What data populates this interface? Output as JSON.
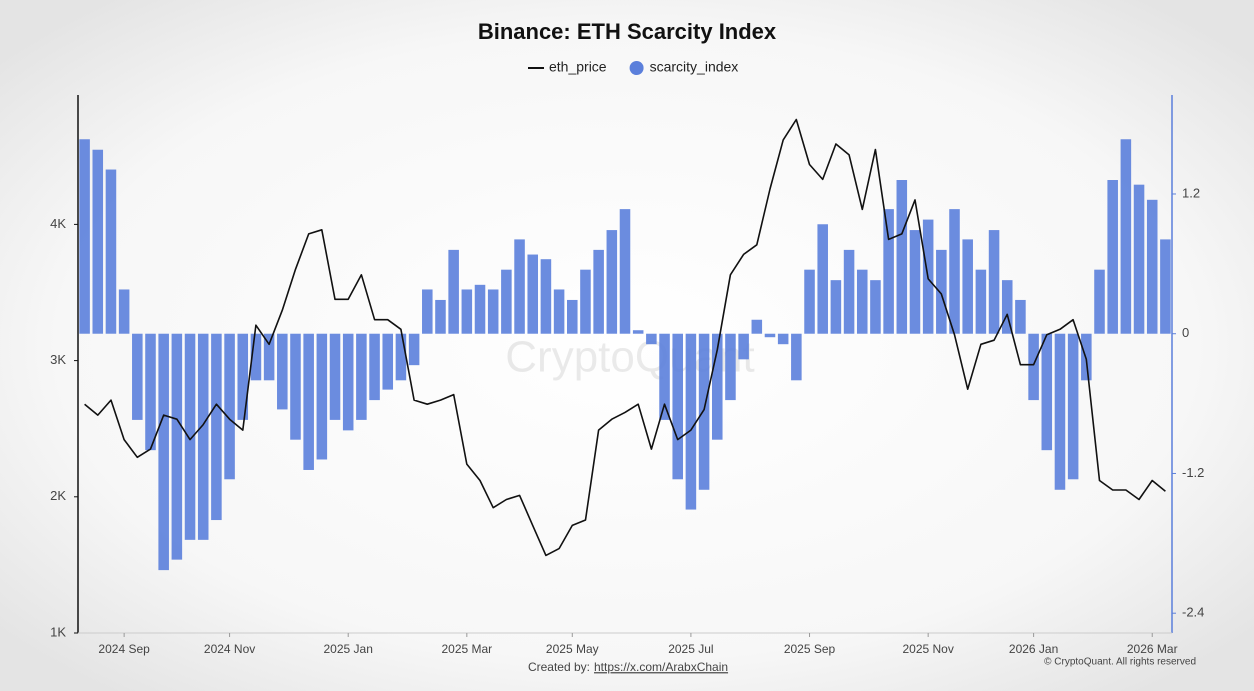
{
  "chart_data": {
    "type": "bar-line",
    "title": "Binance: ETH Scarcity Index",
    "watermark": "CryptoQuant",
    "credit_label": "Created by:",
    "credit_link": "https://x.com/ArabxChain",
    "copyright": "© CryptoQuant. All rights reserved",
    "categories": [
      null,
      null,
      null,
      "2024 Sep",
      null,
      null,
      null,
      null,
      null,
      null,
      null,
      "2024 Nov",
      null,
      null,
      null,
      null,
      null,
      null,
      null,
      null,
      "2025 Jan",
      null,
      null,
      null,
      null,
      null,
      null,
      null,
      null,
      "2025 Mar",
      null,
      null,
      null,
      null,
      null,
      null,
      null,
      "2025 May",
      null,
      null,
      null,
      null,
      null,
      null,
      null,
      null,
      "2025 Jul",
      null,
      null,
      null,
      null,
      null,
      null,
      null,
      null,
      "2025 Sep",
      null,
      null,
      null,
      null,
      null,
      null,
      null,
      null,
      "2025 Nov",
      null,
      null,
      null,
      null,
      null,
      null,
      null,
      "2026 Jan",
      null,
      null,
      null,
      null,
      null,
      null,
      null,
      null,
      "2026 Mar",
      null
    ],
    "series": [
      {
        "name": "eth_price",
        "kind": "line",
        "axis": "y",
        "color": "#111111",
        "values": [
          2680,
          2600,
          2710,
          2420,
          2290,
          2350,
          2600,
          2570,
          2420,
          2530,
          2680,
          2570,
          2490,
          3260,
          3120,
          3370,
          3670,
          3930,
          3960,
          3450,
          3450,
          3630,
          3300,
          3300,
          3230,
          2710,
          2680,
          2710,
          2750,
          2240,
          2120,
          1920,
          1980,
          2010,
          1790,
          1570,
          1620,
          1790,
          1830,
          2490,
          2570,
          2620,
          2680,
          2350,
          2680,
          2420,
          2490,
          2640,
          3080,
          3630,
          3780,
          3850,
          4260,
          4620,
          4770,
          4440,
          4330,
          4590,
          4510,
          4110,
          4550,
          3890,
          3930,
          4180,
          3600,
          3490,
          3190,
          2790,
          3120,
          3150,
          3340,
          2970,
          2970,
          3190,
          3230,
          3300,
          3010,
          2120,
          2050,
          2050,
          1980,
          2120,
          2040
        ]
      },
      {
        "name": "scarcity_index",
        "kind": "bar",
        "axis": "y2",
        "color": "#5b7fdb",
        "values": [
          1.67,
          1.58,
          1.41,
          0.38,
          -0.74,
          -1.0,
          -2.03,
          -1.94,
          -1.77,
          -1.77,
          -1.6,
          -1.25,
          -0.74,
          -0.4,
          -0.4,
          -0.65,
          -0.91,
          -1.17,
          -1.08,
          -0.74,
          -0.83,
          -0.74,
          -0.57,
          -0.48,
          -0.4,
          -0.27,
          0.38,
          0.29,
          0.72,
          0.38,
          0.42,
          0.38,
          0.55,
          0.81,
          0.68,
          0.64,
          0.38,
          0.29,
          0.55,
          0.72,
          0.89,
          1.07,
          0.03,
          -0.09,
          -0.74,
          -1.25,
          -1.51,
          -1.34,
          -0.91,
          -0.57,
          -0.22,
          0.12,
          -0.03,
          -0.09,
          -0.4,
          0.55,
          0.94,
          0.46,
          0.72,
          0.55,
          0.46,
          1.07,
          1.32,
          0.89,
          0.98,
          0.72,
          1.07,
          0.81,
          0.55,
          0.89,
          0.46,
          0.29,
          -0.57,
          -1.0,
          -1.34,
          -1.25,
          -0.4,
          0.55,
          1.32,
          1.67,
          1.28,
          1.15,
          0.81
        ]
      }
    ],
    "ylim": [
      1000,
      4950
    ],
    "yticks": [
      {
        "value": 1000,
        "label": "1K"
      },
      {
        "value": 2000,
        "label": "2K"
      },
      {
        "value": 3000,
        "label": "3K"
      },
      {
        "value": 4000,
        "label": "4K"
      }
    ],
    "y2lim": [
      -2.57,
      2.05
    ],
    "y2ticks": [
      -2.4,
      -1.2,
      0,
      1.2
    ],
    "grid": false
  }
}
